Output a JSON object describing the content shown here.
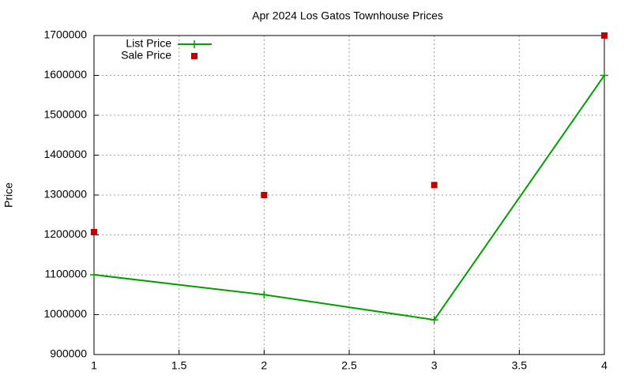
{
  "chart_data": {
    "type": "line",
    "title": "Apr 2024 Los Gatos Townhouse Prices",
    "y_label": "Price",
    "x": [
      1,
      2,
      3,
      4
    ],
    "series": [
      {
        "name": "List Price",
        "color": "#00a000",
        "style": "linespoints",
        "values": [
          1100000,
          1050000,
          987000,
          1600000
        ]
      },
      {
        "name": "Sale Price",
        "color": "#c00000",
        "style": "points",
        "values": [
          1207000,
          1300000,
          1325000,
          1700000
        ]
      }
    ],
    "xlim": [
      1,
      4
    ],
    "xticks": [
      1,
      1.5,
      2,
      2.5,
      3,
      3.5,
      4
    ],
    "ylim": [
      900000,
      1700000
    ],
    "yticks": [
      900000,
      1000000,
      1100000,
      1200000,
      1300000,
      1400000,
      1500000,
      1600000,
      1700000
    ],
    "grid": true,
    "legend": "top-left"
  }
}
